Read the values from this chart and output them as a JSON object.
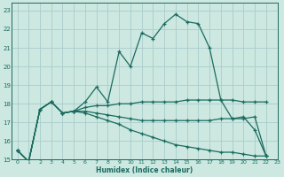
{
  "xlabel": "Humidex (Indice chaleur)",
  "bg_color": "#cce8e0",
  "grid_color": "#aacccc",
  "line_color": "#1a6b60",
  "xlim": [
    -0.5,
    23
  ],
  "ylim": [
    15,
    23.4
  ],
  "yticks": [
    15,
    16,
    17,
    18,
    19,
    20,
    21,
    22,
    23
  ],
  "xticks": [
    0,
    1,
    2,
    3,
    4,
    5,
    6,
    7,
    8,
    9,
    10,
    11,
    12,
    13,
    14,
    15,
    16,
    17,
    18,
    19,
    20,
    21,
    22,
    23
  ],
  "series": [
    {
      "x": [
        0,
        1,
        2,
        3,
        4,
        5,
        6,
        7,
        8,
        9,
        10,
        11,
        12,
        13,
        14,
        15,
        16,
        17,
        18,
        19,
        20,
        21,
        22,
        23
      ],
      "y": [
        15.5,
        14.9,
        17.7,
        18.1,
        17.5,
        17.6,
        18.1,
        18.9,
        18.1,
        20.8,
        20.0,
        21.8,
        21.5,
        22.3,
        22.8,
        22.4,
        22.3,
        21.0,
        18.2,
        17.2,
        17.3,
        16.6,
        15.2,
        null
      ]
    },
    {
      "x": [
        0,
        1,
        2,
        3,
        4,
        5,
        6,
        7,
        8,
        9,
        10,
        11,
        12,
        13,
        14,
        15,
        16,
        17,
        18,
        19,
        20,
        21,
        22,
        23
      ],
      "y": [
        15.5,
        14.9,
        17.7,
        18.1,
        17.5,
        17.6,
        17.8,
        17.9,
        17.9,
        18.0,
        18.0,
        18.1,
        18.1,
        18.1,
        18.1,
        18.2,
        18.2,
        18.2,
        18.2,
        18.2,
        18.1,
        18.1,
        18.1,
        null
      ]
    },
    {
      "x": [
        0,
        1,
        2,
        3,
        4,
        5,
        6,
        7,
        8,
        9,
        10,
        11,
        12,
        13,
        14,
        15,
        16,
        17,
        18,
        19,
        20,
        21,
        22,
        23
      ],
      "y": [
        15.5,
        14.9,
        17.7,
        18.1,
        17.5,
        17.6,
        17.6,
        17.5,
        17.4,
        17.3,
        17.2,
        17.1,
        17.1,
        17.1,
        17.1,
        17.1,
        17.1,
        17.1,
        17.2,
        17.2,
        17.2,
        17.3,
        15.2,
        null
      ]
    },
    {
      "x": [
        0,
        1,
        2,
        3,
        4,
        5,
        6,
        7,
        8,
        9,
        10,
        11,
        12,
        13,
        14,
        15,
        16,
        17,
        18,
        19,
        20,
        21,
        22,
        23
      ],
      "y": [
        15.5,
        14.9,
        17.7,
        18.1,
        17.5,
        17.6,
        17.5,
        17.3,
        17.1,
        16.9,
        16.6,
        16.4,
        16.2,
        16.0,
        15.8,
        15.7,
        15.6,
        15.5,
        15.4,
        15.4,
        15.3,
        15.2,
        15.2,
        null
      ]
    }
  ]
}
